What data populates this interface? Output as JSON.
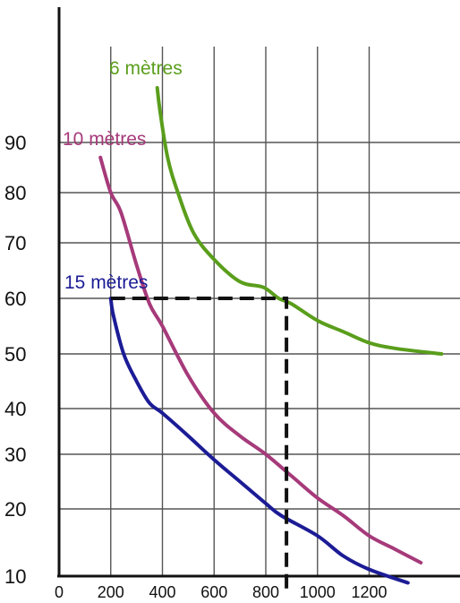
{
  "chart_data": {
    "type": "line",
    "title": "",
    "xlabel": "",
    "ylabel": "",
    "x_ticks": [
      "0",
      "200",
      "400",
      "600",
      "800",
      "1000",
      "1200"
    ],
    "y_ticks": [
      "10",
      "20",
      "30",
      "40",
      "50",
      "60",
      "70",
      "80",
      "90"
    ],
    "grid": true,
    "series": [
      {
        "name": "6 mètres",
        "color": "#5a9e1c",
        "points": [
          [
            380,
            100
          ],
          [
            390,
            96
          ],
          [
            420,
            87
          ],
          [
            460,
            80
          ],
          [
            520,
            72
          ],
          [
            600,
            67
          ],
          [
            700,
            63
          ],
          [
            790,
            62
          ],
          [
            850,
            60
          ],
          [
            900,
            59
          ],
          [
            1000,
            56
          ],
          [
            1100,
            54
          ],
          [
            1200,
            52
          ],
          [
            1300,
            51
          ],
          [
            1480,
            50
          ]
        ]
      },
      {
        "name": "10 mètres",
        "color": "#a63a7a",
        "points": [
          [
            160,
            87
          ],
          [
            200,
            80
          ],
          [
            240,
            76
          ],
          [
            300,
            66
          ],
          [
            350,
            59
          ],
          [
            400,
            55
          ],
          [
            500,
            46
          ],
          [
            600,
            39
          ],
          [
            700,
            34
          ],
          [
            800,
            30
          ],
          [
            900,
            26
          ],
          [
            1000,
            22
          ],
          [
            1100,
            19
          ],
          [
            1200,
            16
          ],
          [
            1300,
            14
          ],
          [
            1400,
            12
          ]
        ]
      },
      {
        "name": "15 mètres",
        "color": "#1c1c96",
        "points": [
          [
            200,
            60
          ],
          [
            210,
            57
          ],
          [
            250,
            50
          ],
          [
            300,
            45
          ],
          [
            350,
            41
          ],
          [
            400,
            39
          ],
          [
            500,
            34
          ],
          [
            600,
            29
          ],
          [
            700,
            25
          ],
          [
            800,
            21
          ],
          [
            860,
            19
          ],
          [
            1000,
            16
          ],
          [
            1100,
            13
          ],
          [
            1200,
            11
          ],
          [
            1350,
            9
          ]
        ]
      }
    ],
    "reference_line": {
      "color": "#111111",
      "points": [
        [
          200,
          60
        ],
        [
          880,
          60
        ],
        [
          880,
          8
        ]
      ]
    }
  }
}
